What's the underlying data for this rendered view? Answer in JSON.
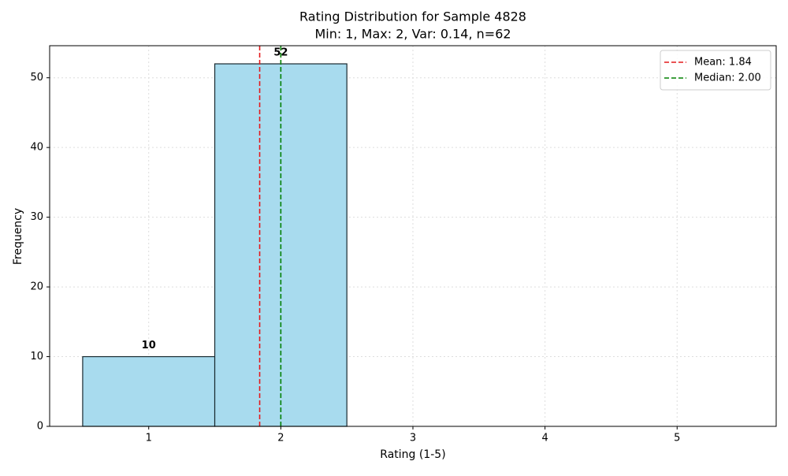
{
  "chart_data": {
    "type": "histogram",
    "title": "Rating Distribution for Sample 4828",
    "subtitle": "Min: 1, Max: 2, Var: 0.14, n=62",
    "x_label": "Rating (1-5)",
    "y_label": "Frequency",
    "bins": [
      0.5,
      1.5,
      2.5,
      3.5,
      4.5,
      5.5
    ],
    "values": [
      10,
      52,
      0,
      0,
      0
    ],
    "color": "#a8dbee",
    "edge_color": "#1a2a30",
    "reference_lines": [
      {
        "name": "Mean: 1.84",
        "value": 1.84,
        "color": "#e41a1c"
      },
      {
        "name": "Median: 2.00",
        "value": 2.0,
        "color": "#008000"
      }
    ],
    "xlim": [
      0.25,
      5.75
    ],
    "xticks": [
      1,
      2,
      3,
      4,
      5
    ],
    "ylim": [
      0,
      54.6
    ],
    "yticks": [
      0,
      10,
      20,
      30,
      40,
      50
    ],
    "grid": true,
    "legend_position": "upper right"
  }
}
